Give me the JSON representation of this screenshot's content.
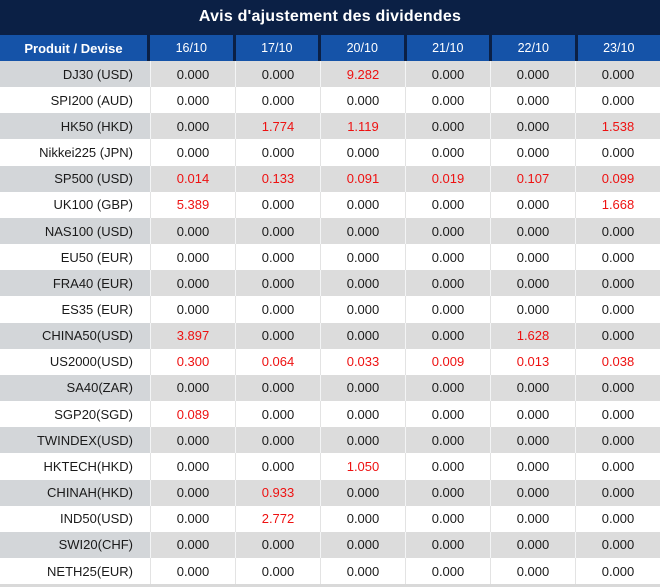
{
  "title": "Avis d'ajustement des dividendes",
  "table": {
    "product_header": "Produit / Devise",
    "date_headers": [
      "16/10",
      "17/10",
      "20/10",
      "21/10",
      "22/10",
      "23/10"
    ],
    "rows": [
      {
        "product": "DJ30 (USD)",
        "values": [
          "0.000",
          "0.000",
          "9.282",
          "0.000",
          "0.000",
          "0.000"
        ]
      },
      {
        "product": "SPI200 (AUD)",
        "values": [
          "0.000",
          "0.000",
          "0.000",
          "0.000",
          "0.000",
          "0.000"
        ]
      },
      {
        "product": "HK50 (HKD)",
        "values": [
          "0.000",
          "1.774",
          "1.119",
          "0.000",
          "0.000",
          "1.538"
        ]
      },
      {
        "product": "Nikkei225 (JPN)",
        "values": [
          "0.000",
          "0.000",
          "0.000",
          "0.000",
          "0.000",
          "0.000"
        ]
      },
      {
        "product": "SP500 (USD)",
        "values": [
          "0.014",
          "0.133",
          "0.091",
          "0.019",
          "0.107",
          "0.099"
        ]
      },
      {
        "product": "UK100 (GBP)",
        "values": [
          "5.389",
          "0.000",
          "0.000",
          "0.000",
          "0.000",
          "1.668"
        ]
      },
      {
        "product": "NAS100 (USD)",
        "values": [
          "0.000",
          "0.000",
          "0.000",
          "0.000",
          "0.000",
          "0.000"
        ]
      },
      {
        "product": "EU50 (EUR)",
        "values": [
          "0.000",
          "0.000",
          "0.000",
          "0.000",
          "0.000",
          "0.000"
        ]
      },
      {
        "product": "FRA40 (EUR)",
        "values": [
          "0.000",
          "0.000",
          "0.000",
          "0.000",
          "0.000",
          "0.000"
        ]
      },
      {
        "product": "ES35 (EUR)",
        "values": [
          "0.000",
          "0.000",
          "0.000",
          "0.000",
          "0.000",
          "0.000"
        ]
      },
      {
        "product": "CHINA50(USD)",
        "values": [
          "3.897",
          "0.000",
          "0.000",
          "0.000",
          "1.628",
          "0.000"
        ]
      },
      {
        "product": "US2000(USD)",
        "values": [
          "0.300",
          "0.064",
          "0.033",
          "0.009",
          "0.013",
          "0.038"
        ]
      },
      {
        "product": "SA40(ZAR)",
        "values": [
          "0.000",
          "0.000",
          "0.000",
          "0.000",
          "0.000",
          "0.000"
        ]
      },
      {
        "product": "SGP20(SGD)",
        "values": [
          "0.089",
          "0.000",
          "0.000",
          "0.000",
          "0.000",
          "0.000"
        ]
      },
      {
        "product": "TWINDEX(USD)",
        "values": [
          "0.000",
          "0.000",
          "0.000",
          "0.000",
          "0.000",
          "0.000"
        ]
      },
      {
        "product": "HKTECH(HKD)",
        "values": [
          "0.000",
          "0.000",
          "1.050",
          "0.000",
          "0.000",
          "0.000"
        ]
      },
      {
        "product": "CHINAH(HKD)",
        "values": [
          "0.000",
          "0.933",
          "0.000",
          "0.000",
          "0.000",
          "0.000"
        ]
      },
      {
        "product": "IND50(USD)",
        "values": [
          "0.000",
          "2.772",
          "0.000",
          "0.000",
          "0.000",
          "0.000"
        ]
      },
      {
        "product": "SWI20(CHF)",
        "values": [
          "0.000",
          "0.000",
          "0.000",
          "0.000",
          "0.000",
          "0.000"
        ]
      },
      {
        "product": "NETH25(EUR)",
        "values": [
          "0.000",
          "0.000",
          "0.000",
          "0.000",
          "0.000",
          "0.000"
        ]
      }
    ]
  },
  "colors": {
    "title_bar": "#0b2045",
    "header_blue": "#1553a8",
    "row_gray": "#dcdcdc",
    "label_gray": "#d3d6d9",
    "value_black": "#1a1a1a",
    "value_red": "#ee1111"
  }
}
